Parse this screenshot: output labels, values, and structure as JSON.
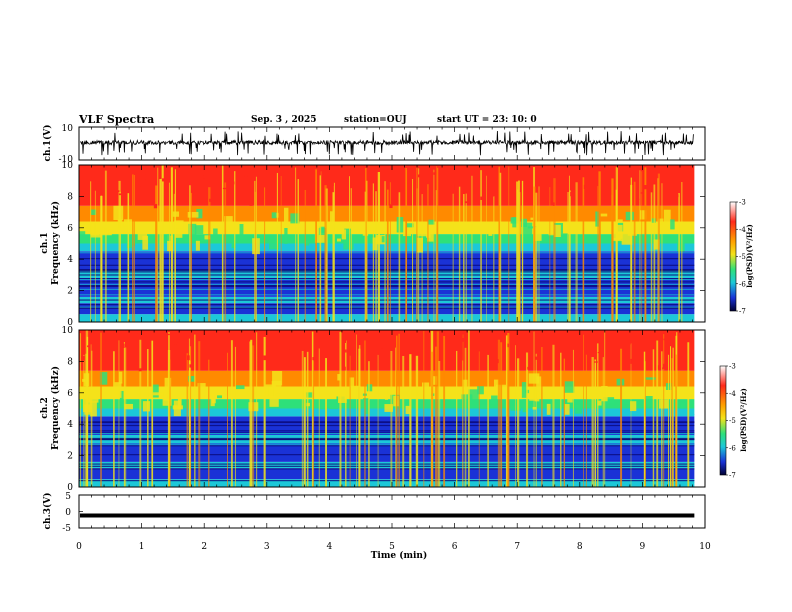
{
  "header": {
    "title": "VLF Spectra",
    "date": "Sep. 3 , 2025",
    "station": "station=OUJ",
    "start_time": "start UT = 23: 10: 0"
  },
  "chart_data": [
    {
      "type": "line",
      "panel": "ch1-waveform",
      "ylabel": "ch.1(V)",
      "y_ticks": [
        "10",
        "-10"
      ],
      "ylim": [
        -10,
        10
      ],
      "xlim": [
        0,
        10
      ]
    },
    {
      "type": "heatmap",
      "panel": "ch1-spectrogram",
      "ylabel_line1": "ch.1",
      "ylabel_line2": "Frequency (kHz)",
      "y_ticks": [
        "0",
        "2",
        "4",
        "6",
        "8",
        "10"
      ],
      "ylim": [
        0,
        10
      ],
      "xlim": [
        0,
        10
      ],
      "colorbar": {
        "label": "log(PSD)(V²/Hz)",
        "ticks": [
          "-3",
          "-4",
          "-5",
          "-6",
          "-7"
        ],
        "range": [
          -7,
          -3
        ]
      }
    },
    {
      "type": "heatmap",
      "panel": "ch2-spectrogram",
      "ylabel_line1": "ch.2",
      "ylabel_line2": "Frequency (kHz)",
      "y_ticks": [
        "0",
        "2",
        "4",
        "6",
        "8",
        "10"
      ],
      "ylim": [
        0,
        10
      ],
      "xlim": [
        0,
        10
      ],
      "colorbar": {
        "label": "log(PSD)(V²/Hz)",
        "ticks": [
          "-3",
          "-4",
          "-5",
          "-6",
          "-7"
        ],
        "range": [
          -7,
          -3
        ]
      }
    },
    {
      "type": "line",
      "panel": "ch3-waveform",
      "ylabel": "ch.3(V)",
      "y_ticks": [
        "5",
        "0",
        "-5"
      ],
      "ylim": [
        -5,
        5
      ],
      "xlim": [
        0,
        10
      ],
      "constant_value": -1.2
    }
  ],
  "x_axis": {
    "label": "Time (min)",
    "ticks": [
      "0",
      "1",
      "2",
      "3",
      "4",
      "5",
      "6",
      "7",
      "8",
      "9",
      "10"
    ],
    "data_end": 9.83
  },
  "colors": {
    "red": "#ff2a1a",
    "orange": "#ff8a00",
    "yellow": "#f4e21a",
    "green": "#2ee07a",
    "cyan": "#1cc8d8",
    "blue": "#1a32d6",
    "navy": "#0a0a7a",
    "trace": "#000000"
  }
}
